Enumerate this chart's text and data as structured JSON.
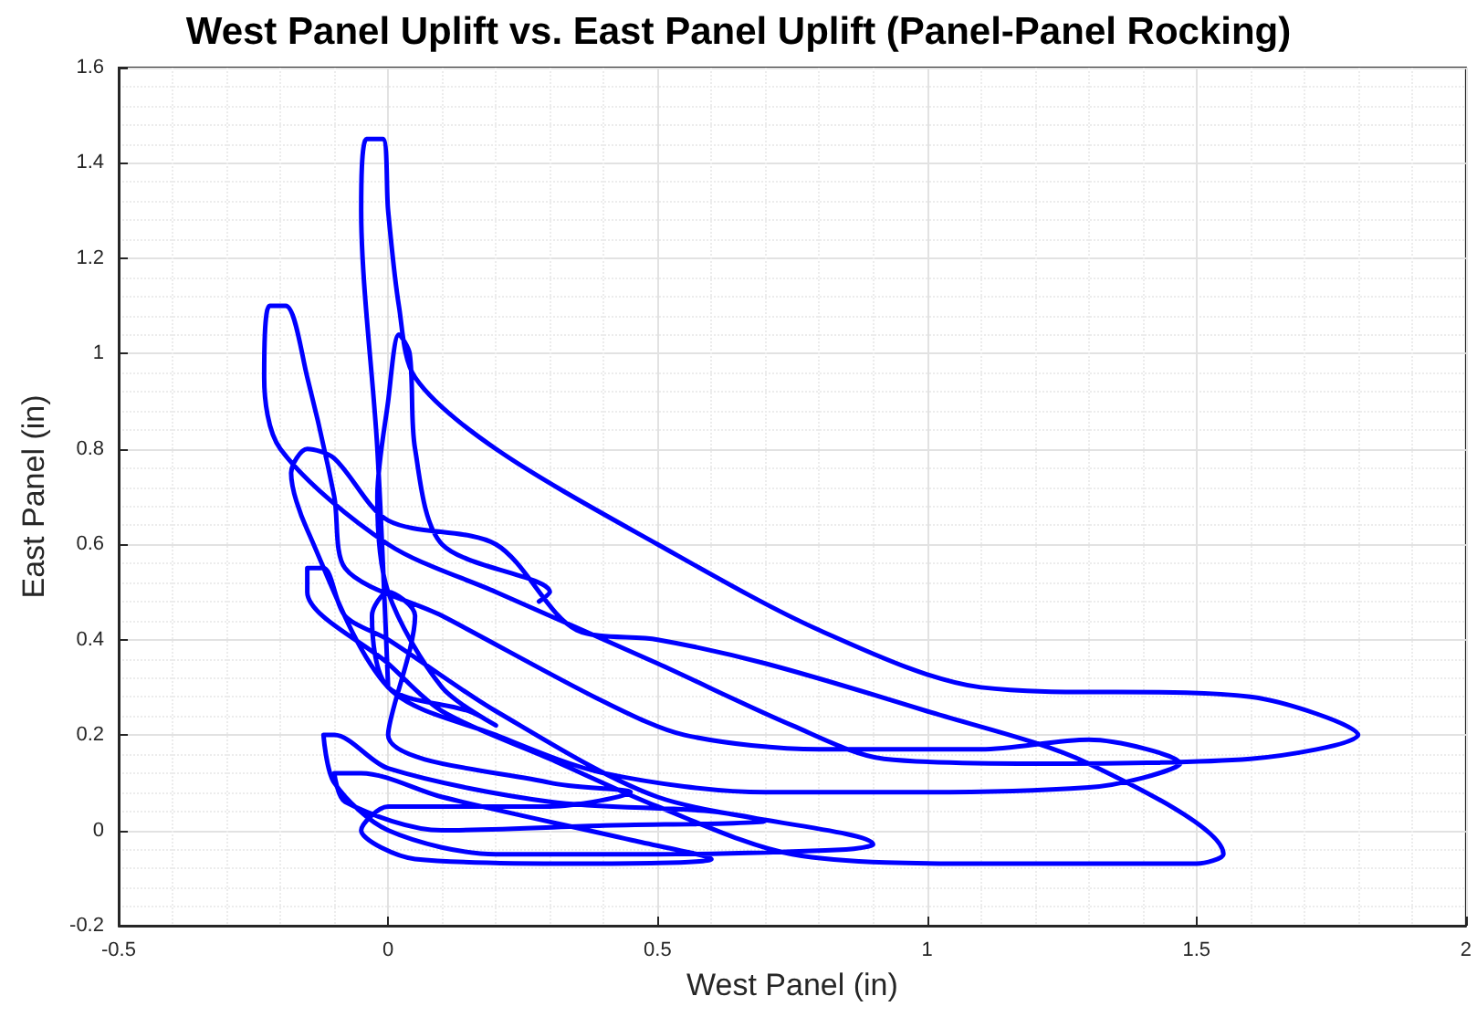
{
  "chart_data": {
    "type": "line",
    "title": "West Panel Uplift vs. East Panel Uplift (Panel-Panel Rocking)",
    "xlabel": "West Panel (in)",
    "ylabel": "East Panel (in)",
    "xlim": [
      -0.5,
      2
    ],
    "xticks": [
      -0.5,
      0,
      0.5,
      1,
      1.5,
      2
    ],
    "ylim": [
      -0.2,
      1.6
    ],
    "yticks": [
      -0.2,
      0,
      0.2,
      0.4,
      0.6,
      0.8,
      1,
      1.2,
      1.4,
      1.6
    ],
    "grid": true,
    "marker": "none",
    "line_style": "solid",
    "series": [
      {
        "color": "#0000ff",
        "x": [
          0.0,
          -0.02,
          -0.05,
          -0.04,
          -0.01,
          0.0,
          0.02,
          0.05,
          0.2,
          0.5,
          0.8,
          1.1,
          1.6,
          1.8,
          1.6,
          1.2,
          0.92,
          0.75,
          0.5,
          0.2,
          0.0,
          -0.2,
          -0.23,
          -0.22,
          -0.19,
          -0.15,
          -0.1,
          -0.08,
          0.1,
          0.4,
          0.55,
          0.8,
          1.1,
          1.3,
          1.47,
          1.4,
          1.3,
          1.0,
          0.7,
          0.4,
          0.2,
          0.0,
          -0.15,
          -0.18,
          -0.15,
          -0.1,
          0.0,
          0.2,
          0.35,
          0.5,
          0.7,
          1.0,
          1.3,
          1.55,
          1.5,
          1.1,
          0.75,
          0.5,
          0.3,
          0.1,
          0.0,
          -0.15,
          -0.15,
          -0.12,
          -0.08,
          0.0,
          0.2,
          0.5,
          0.9,
          0.85,
          0.5,
          0.2,
          0.0,
          -0.1,
          -0.12,
          -0.1,
          0.0,
          0.3,
          0.6,
          0.7,
          0.4,
          0.1,
          -0.08,
          -0.1,
          -0.05,
          0.1,
          0.45,
          0.6,
          0.35,
          0.05,
          -0.05,
          0.0,
          0.3,
          0.45,
          0.3,
          0.0,
          0.05,
          0.0,
          -0.03,
          0.0,
          0.15,
          0.2,
          0.1,
          0.0,
          -0.02,
          0.0,
          0.02,
          0.04,
          0.05,
          0.1,
          0.3,
          0.28
        ],
        "values": [
          0.3,
          0.8,
          1.3,
          1.45,
          1.45,
          1.3,
          1.1,
          0.95,
          0.8,
          0.6,
          0.42,
          0.3,
          0.28,
          0.2,
          0.15,
          0.14,
          0.15,
          0.22,
          0.35,
          0.5,
          0.6,
          0.8,
          0.95,
          1.1,
          1.1,
          0.95,
          0.7,
          0.55,
          0.45,
          0.27,
          0.2,
          0.17,
          0.17,
          0.19,
          0.14,
          0.11,
          0.09,
          0.08,
          0.08,
          0.12,
          0.2,
          0.3,
          0.63,
          0.75,
          0.8,
          0.78,
          0.65,
          0.6,
          0.42,
          0.4,
          0.35,
          0.25,
          0.14,
          -0.05,
          -0.07,
          -0.07,
          -0.05,
          0.05,
          0.15,
          0.25,
          0.35,
          0.5,
          0.55,
          0.55,
          0.45,
          0.4,
          0.25,
          0.07,
          -0.03,
          -0.04,
          -0.05,
          -0.05,
          0.0,
          0.1,
          0.2,
          0.2,
          0.13,
          0.06,
          0.04,
          0.02,
          0.01,
          0.0,
          0.06,
          0.12,
          0.12,
          0.07,
          -0.02,
          -0.06,
          -0.07,
          -0.06,
          0.0,
          0.05,
          0.05,
          0.08,
          0.1,
          0.2,
          0.45,
          0.5,
          0.45,
          0.3,
          0.25,
          0.22,
          0.3,
          0.5,
          0.7,
          0.9,
          1.04,
          1.0,
          0.8,
          0.6,
          0.5,
          0.48
        ]
      }
    ]
  }
}
